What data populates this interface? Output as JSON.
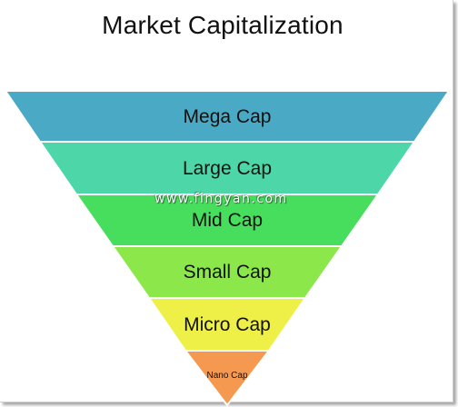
{
  "title": "Market Capitalization",
  "watermark": "www.fingyan.com",
  "levels": [
    {
      "label": "Mega Cap",
      "color": "#4aaac6"
    },
    {
      "label": "Large Cap",
      "color": "#4dd6a8"
    },
    {
      "label": "Mid Cap",
      "color": "#46de5c"
    },
    {
      "label": "Small Cap",
      "color": "#8ce84a"
    },
    {
      "label": "Micro Cap",
      "color": "#eef048"
    },
    {
      "label": "Nano Cap",
      "color": "#f59850"
    }
  ]
}
